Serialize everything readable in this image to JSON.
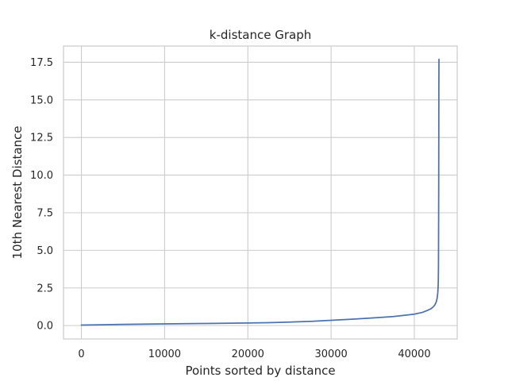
{
  "chart_data": {
    "type": "line",
    "title": "k-distance Graph",
    "xlabel": "Points sorted by distance",
    "ylabel": "10th Nearest Distance",
    "xlim": [
      -2150,
      45150
    ],
    "ylim": [
      -0.89,
      18.58
    ],
    "x_ticks": [
      0,
      10000,
      20000,
      30000,
      40000
    ],
    "x_tick_labels": [
      "0",
      "10000",
      "20000",
      "30000",
      "40000"
    ],
    "y_ticks": [
      0.0,
      2.5,
      5.0,
      7.5,
      10.0,
      12.5,
      15.0,
      17.5
    ],
    "y_tick_labels": [
      "0.0",
      "2.5",
      "5.0",
      "7.5",
      "10.0",
      "12.5",
      "15.0",
      "17.5"
    ],
    "grid": true,
    "colors": {
      "line": "#4c72b0",
      "grid": "#cccccc",
      "spine": "#cccccc",
      "background": "#ffffff"
    },
    "series": [
      {
        "x": [
          0,
          5000,
          10000,
          15000,
          20000,
          22500,
          25000,
          27500,
          30000,
          32500,
          35000,
          37500,
          40000,
          41000,
          41500,
          42000,
          42300,
          42500,
          42650,
          42750,
          42820,
          42860,
          42880,
          42900,
          42910,
          42920,
          42930,
          42935,
          42940,
          42945,
          42950,
          42955,
          42960
        ],
        "y": [
          0.03,
          0.08,
          0.11,
          0.14,
          0.17,
          0.19,
          0.23,
          0.28,
          0.35,
          0.42,
          0.51,
          0.6,
          0.76,
          0.88,
          0.99,
          1.12,
          1.26,
          1.4,
          1.6,
          1.85,
          2.2,
          2.6,
          3.0,
          4.0,
          5.5,
          7.5,
          9.5,
          11.5,
          13.5,
          15.0,
          16.3,
          17.2,
          17.7
        ]
      }
    ]
  }
}
